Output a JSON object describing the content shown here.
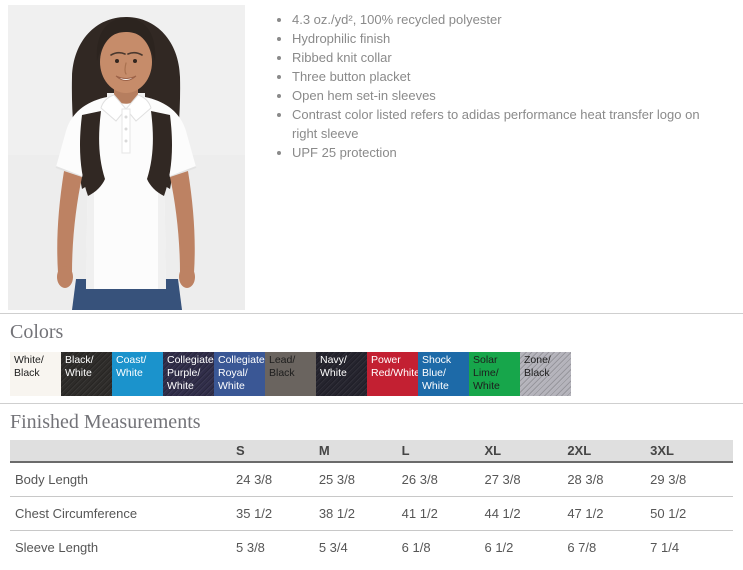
{
  "photo": {
    "alt": "Female model wearing a white short-sleeve polo shirt"
  },
  "features": {
    "items": [
      "4.3 oz./yd², 100% recycled polyester",
      "Hydrophilic finish",
      "Ribbed knit collar",
      "Three button placket",
      "Open hem set-in sleeves",
      "Contrast color listed refers to adidas performance heat transfer logo on right sleeve",
      "UPF 25 protection"
    ]
  },
  "colors": {
    "title": "Colors",
    "swatches": [
      {
        "label": "White/ Black",
        "bg": "#f8f5f0",
        "text": "#1d1d1d",
        "textured": false
      },
      {
        "label": "Black/ White",
        "bg": "#2e2c2a",
        "text": "#ffffff",
        "textured": true
      },
      {
        "label": "Coast/ White",
        "bg": "#1b93cc",
        "text": "#ffffff",
        "textured": false
      },
      {
        "label": "Collegiate Purple/ White",
        "bg": "#302d49",
        "text": "#ffffff",
        "textured": true
      },
      {
        "label": "Collegiate Royal/ White",
        "bg": "#3a5795",
        "text": "#ffffff",
        "textured": false
      },
      {
        "label": "Lead/ Black",
        "bg": "#6a645f",
        "text": "#1d1d1d",
        "textured": false
      },
      {
        "label": "Navy/ White",
        "bg": "#25242e",
        "text": "#ffffff",
        "textured": true
      },
      {
        "label": "Power Red/White",
        "bg": "#c32032",
        "text": "#ffffff",
        "textured": false
      },
      {
        "label": "Shock Blue/ White",
        "bg": "#1d6aa8",
        "text": "#ffffff",
        "textured": false
      },
      {
        "label": "Solar Lime/ White",
        "bg": "#17a64b",
        "text": "#1d1d1d",
        "textured": false
      },
      {
        "label": "Zone/ Black",
        "bg": "#b4b3bb",
        "text": "#1d1d1d",
        "textured": true
      }
    ]
  },
  "measurements": {
    "title": "Finished Measurements",
    "columns": [
      "S",
      "M",
      "L",
      "XL",
      "2XL",
      "3XL"
    ],
    "rows": [
      {
        "label": "Body Length",
        "values": [
          "24 3/8",
          "25 3/8",
          "26 3/8",
          "27 3/8",
          "28 3/8",
          "29 3/8"
        ]
      },
      {
        "label": "Chest Circumference",
        "values": [
          "35 1/2",
          "38 1/2",
          "41 1/2",
          "44 1/2",
          "47 1/2",
          "50 1/2"
        ]
      },
      {
        "label": "Sleeve Length",
        "values": [
          "5 3/8",
          "5 3/4",
          "6 1/8",
          "6 1/2",
          "6 7/8",
          "7 1/4"
        ]
      }
    ]
  }
}
